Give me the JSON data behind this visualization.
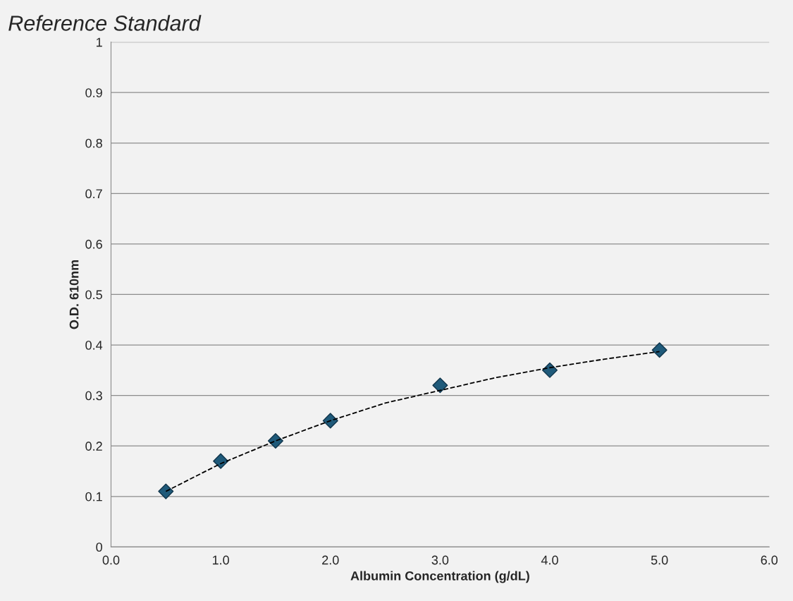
{
  "chart_data": {
    "type": "scatter",
    "title": "Reference Standard",
    "xlabel": "Albumin Concentration (g/dL)",
    "ylabel": "O.D. 610nm",
    "series": [
      {
        "color": "#1f5a7a",
        "marker": "diamond",
        "x": [
          0.5,
          1.0,
          1.5,
          2.0,
          3.0,
          4.0,
          5.0
        ],
        "values": [
          0.11,
          0.17,
          0.21,
          0.25,
          0.32,
          0.35,
          0.39
        ]
      },
      {
        "type": "line",
        "color": "#000000",
        "line_style": "dashed",
        "marker": "none",
        "x": [
          0.5,
          1.0,
          1.5,
          2.0,
          2.5,
          3.0,
          3.5,
          4.0,
          4.5,
          5.0
        ],
        "values": [
          0.11,
          0.165,
          0.21,
          0.25,
          0.285,
          0.31,
          0.335,
          0.355,
          0.372,
          0.387
        ]
      }
    ],
    "xlim": [
      0,
      6
    ],
    "xticks": [
      {
        "value": 0,
        "label": "0.0"
      },
      {
        "value": 1,
        "label": "1.0"
      },
      {
        "value": 2,
        "label": "2.0"
      },
      {
        "value": 3,
        "label": "3.0"
      },
      {
        "value": 4,
        "label": "4.0"
      },
      {
        "value": 5,
        "label": "5.0"
      },
      {
        "value": 6,
        "label": "6.0"
      }
    ],
    "ylim": [
      0,
      1
    ],
    "yticks": [
      0,
      0.1,
      0.2,
      0.3,
      0.4,
      0.5,
      0.6,
      0.7,
      0.8,
      0.9,
      1
    ],
    "grid": "y",
    "legend": false
  }
}
